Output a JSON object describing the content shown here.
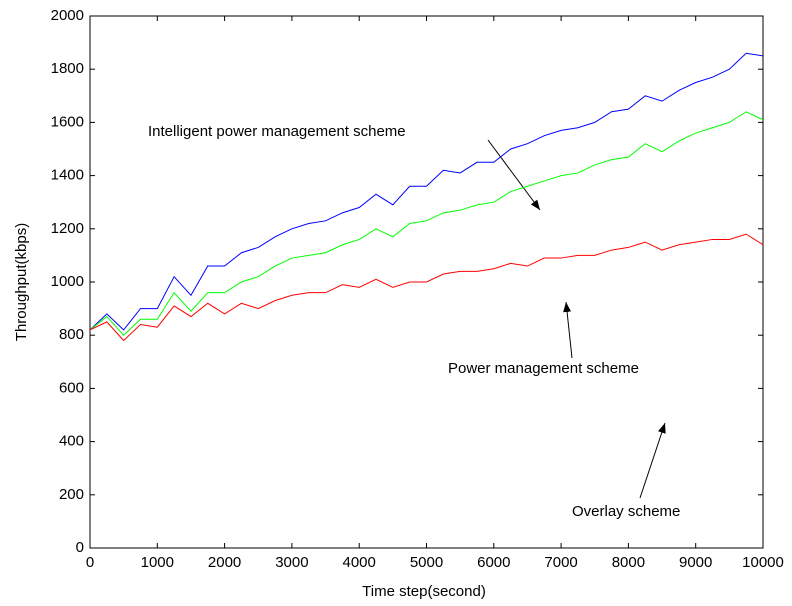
{
  "chart_data": {
    "type": "line",
    "xlabel": "Time step(second)",
    "ylabel": "Throughput(kbps)",
    "x": [
      0,
      250,
      500,
      750,
      1000,
      1250,
      1500,
      1750,
      2000,
      2250,
      2500,
      2750,
      3000,
      3250,
      3500,
      3750,
      4000,
      4250,
      4500,
      4750,
      5000,
      5250,
      5500,
      5750,
      6000,
      6250,
      6500,
      6750,
      7000,
      7250,
      7500,
      7750,
      8000,
      8250,
      8500,
      8750,
      9000,
      9250,
      9500,
      9750,
      10000
    ],
    "series": [
      {
        "name": "Intelligent power management scheme",
        "color": "#0000ff",
        "values": [
          820,
          880,
          820,
          900,
          900,
          1020,
          950,
          1060,
          1060,
          1110,
          1130,
          1170,
          1200,
          1220,
          1230,
          1260,
          1280,
          1330,
          1290,
          1360,
          1360,
          1420,
          1410,
          1450,
          1450,
          1500,
          1520,
          1550,
          1570,
          1580,
          1600,
          1640,
          1650,
          1700,
          1680,
          1720,
          1750,
          1770,
          1800,
          1860,
          1850
        ]
      },
      {
        "name": "Power management scheme",
        "color": "#00ff00",
        "values": [
          820,
          870,
          800,
          860,
          860,
          960,
          890,
          960,
          960,
          1000,
          1020,
          1060,
          1090,
          1100,
          1110,
          1140,
          1160,
          1200,
          1170,
          1220,
          1230,
          1260,
          1270,
          1290,
          1300,
          1340,
          1360,
          1380,
          1400,
          1410,
          1440,
          1460,
          1470,
          1520,
          1490,
          1530,
          1560,
          1580,
          1600,
          1640,
          1610
        ]
      },
      {
        "name": "Overlay scheme",
        "color": "#ff0000",
        "values": [
          820,
          850,
          780,
          840,
          830,
          910,
          870,
          920,
          880,
          920,
          900,
          930,
          950,
          960,
          960,
          990,
          980,
          1010,
          980,
          1000,
          1000,
          1030,
          1040,
          1040,
          1050,
          1070,
          1060,
          1090,
          1090,
          1100,
          1100,
          1120,
          1130,
          1150,
          1120,
          1140,
          1150,
          1160,
          1160,
          1180,
          1140
        ]
      }
    ],
    "xlim": [
      0,
      10000
    ],
    "xticks": [
      0,
      1000,
      2000,
      3000,
      4000,
      5000,
      6000,
      7000,
      8000,
      9000,
      10000
    ],
    "ylim": [
      0,
      2000
    ],
    "yticks": [
      0,
      200,
      400,
      600,
      800,
      1000,
      1200,
      1400,
      1600,
      1800,
      2000
    ],
    "grid": false
  }
}
